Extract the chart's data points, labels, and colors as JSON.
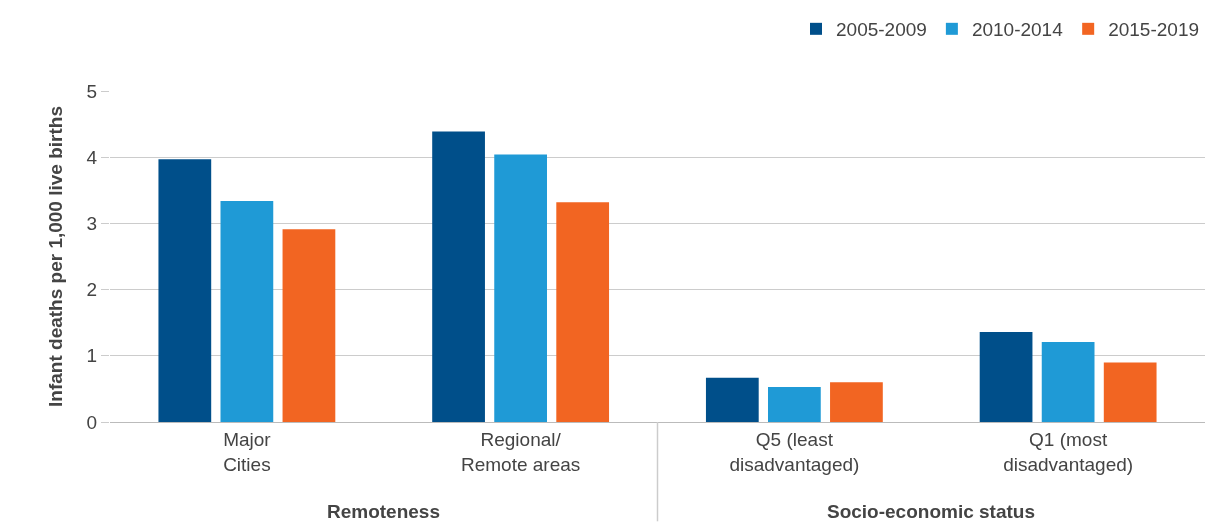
{
  "chart_data": {
    "type": "bar",
    "ylabel": "Infant deaths per 1,000 live births",
    "categories": [
      "Major\nCities",
      "Regional/\nRemote areas",
      "Q5 (least\ndisadvantaged)",
      "Q1 (most\ndisadvantaged)"
    ],
    "series": [
      {
        "name": "2005-2009",
        "color": "#004f8a",
        "values": [
          3.97,
          4.39,
          0.67,
          1.36
        ]
      },
      {
        "name": "2010-2014",
        "color": "#1f9ad6",
        "values": [
          3.34,
          4.04,
          0.53,
          1.21
        ]
      },
      {
        "name": "2015-2019",
        "color": "#f26522",
        "values": [
          2.91,
          3.32,
          0.6,
          0.9
        ]
      }
    ],
    "ylim": [
      0,
      5
    ],
    "yticks": [
      0,
      1,
      2,
      3,
      4,
      5
    ],
    "grid": "y",
    "legend": "top right",
    "annotations": [
      "Remoteness",
      "Socio-economic status"
    ]
  }
}
